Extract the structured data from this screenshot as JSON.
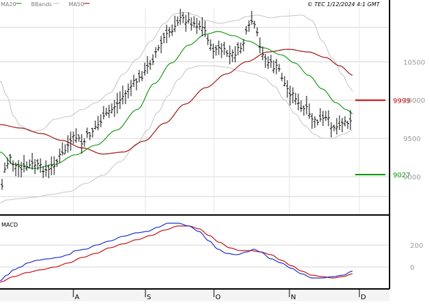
{
  "chart_data": [
    {
      "type": "ohlc",
      "legend": [
        {
          "label": "MA20",
          "color": "#1a9a1a"
        },
        {
          "label": "BBands",
          "color": "#c8c8c8"
        },
        {
          "label": "MA50",
          "color": "#a01010"
        }
      ],
      "header_right": "© TEC 1/12/2024 4:1 GMT",
      "x_ticks": [
        "A",
        "S",
        "O",
        "N",
        "D"
      ],
      "y_ticks": [
        {
          "label": "10500",
          "value": 10500
        },
        {
          "label": "10000",
          "value": 10000
        },
        {
          "label": "9500",
          "value": 9500
        },
        {
          "label": "9000",
          "value": 9000
        }
      ],
      "ylim": [
        8500,
        11200
      ],
      "level_markers": [
        {
          "label": "9999",
          "value": 9999,
          "color": "#c00000"
        },
        {
          "label": "9027",
          "value": 9027,
          "color": "#009900"
        }
      ],
      "grid": true,
      "colors": {
        "price": "#000000",
        "ma20": "#1a9a1a",
        "bbands": "#c8c8c8",
        "ma50": "#a01010"
      }
    },
    {
      "type": "line",
      "title": "MACD",
      "x_ticks": [
        "A",
        "S",
        "O",
        "N",
        "D"
      ],
      "y_ticks": [
        {
          "label": "200",
          "value": 200
        },
        {
          "label": "0",
          "value": 0
        }
      ],
      "ylim": [
        -200,
        450
      ],
      "series": [
        {
          "key": "macd",
          "color": "#1c2fd0"
        },
        {
          "key": "signal",
          "color": "#c41010"
        }
      ]
    }
  ]
}
